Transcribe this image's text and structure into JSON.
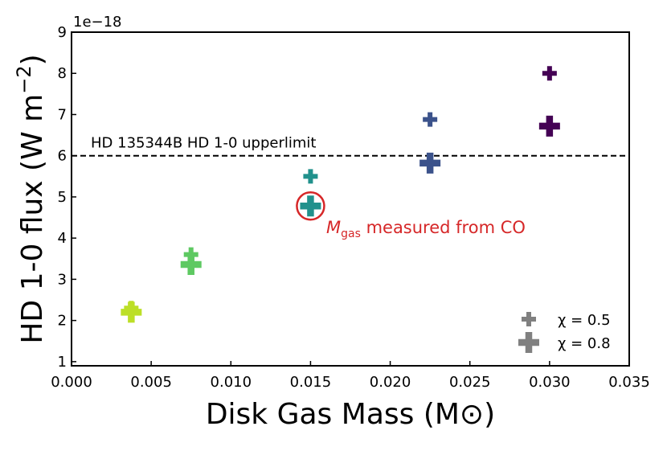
{
  "chart_data": {
    "type": "scatter",
    "title": "",
    "xlabel": "Disk Gas Mass (M⊙)",
    "ylabel_main": "HD 1-0 flux (W m",
    "ylabel_sup": "−2",
    "ylabel_close": ")",
    "xlim": [
      0.0,
      0.035
    ],
    "ylim": [
      0.9,
      9.0
    ],
    "y_offset_label": "1e−18",
    "xticks": [
      0.0,
      0.005,
      0.01,
      0.015,
      0.02,
      0.025,
      0.03,
      0.035
    ],
    "xtick_labels": [
      "0.000",
      "0.005",
      "0.010",
      "0.015",
      "0.020",
      "0.025",
      "0.030",
      "0.035"
    ],
    "yticks": [
      1,
      2,
      3,
      4,
      5,
      6,
      7,
      8,
      9
    ],
    "ytick_labels": [
      "1",
      "2",
      "3",
      "4",
      "5",
      "6",
      "7",
      "8",
      "9"
    ],
    "series": [
      {
        "name": "χ = 0.5",
        "marker_scale": "small",
        "points": [
          {
            "x": 0.00375,
            "y": 2.3,
            "color": "#bcdf27"
          },
          {
            "x": 0.0075,
            "y": 3.6,
            "color": "#5ec962"
          },
          {
            "x": 0.015,
            "y": 5.5,
            "color": "#21918c"
          },
          {
            "x": 0.0225,
            "y": 6.88,
            "color": "#3b528b"
          },
          {
            "x": 0.03,
            "y": 8.0,
            "color": "#440154"
          }
        ]
      },
      {
        "name": "χ = 0.8",
        "marker_scale": "large",
        "points": [
          {
            "x": 0.00375,
            "y": 2.2,
            "color": "#bcdf27"
          },
          {
            "x": 0.0075,
            "y": 3.36,
            "color": "#5ec962"
          },
          {
            "x": 0.015,
            "y": 4.78,
            "color": "#21918c"
          },
          {
            "x": 0.0225,
            "y": 5.82,
            "color": "#3b528b"
          },
          {
            "x": 0.03,
            "y": 6.72,
            "color": "#440154"
          }
        ]
      }
    ],
    "hline": {
      "y": 6.0,
      "style": "dashed",
      "color": "#000000",
      "label": "HD 135344B HD 1-0 upperlimit"
    },
    "highlight": {
      "x": 0.015,
      "y": 4.78,
      "color": "#d62728",
      "label_symbol": "M",
      "label_sub": "gas",
      "label_text": " measured from CO"
    },
    "legend": {
      "placement": "lower-right",
      "entries": [
        {
          "label": "χ = 0.5",
          "marker_scale": "small",
          "color": "#808080"
        },
        {
          "label": "χ = 0.8",
          "marker_scale": "large",
          "color": "#808080"
        }
      ]
    }
  }
}
